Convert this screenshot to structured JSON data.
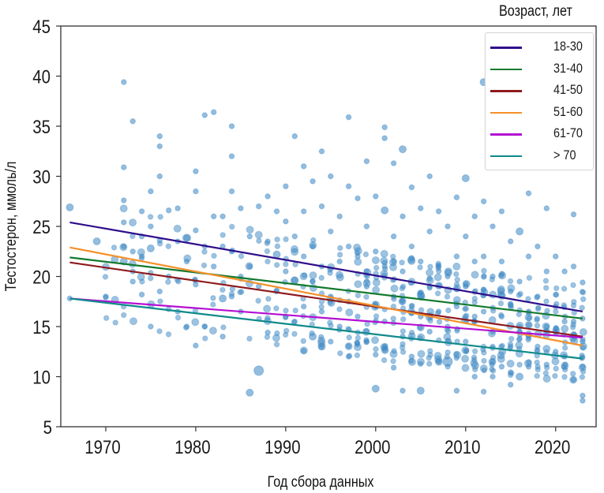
{
  "chart_data": {
    "type": "scatter",
    "title": "",
    "xlabel": "Год сбора данных",
    "ylabel": "Тестостерон, ммоль/л",
    "xlim": [
      1965,
      2024.5
    ],
    "ylim": [
      5,
      45
    ],
    "xticks": [
      1970,
      1980,
      1990,
      2000,
      2010,
      2020
    ],
    "yticks": [
      5,
      10,
      15,
      20,
      25,
      30,
      35,
      40,
      45
    ],
    "grid": false,
    "legend": {
      "title": "Возраст, лет",
      "placement": "top-right",
      "entries": [
        {
          "label": "18-30",
          "color": "#2e0d8a"
        },
        {
          "label": "31-40",
          "color": "#137a2e"
        },
        {
          "label": "41-50",
          "color": "#8e1a1e"
        },
        {
          "label": "51-60",
          "color": "#f5902a"
        },
        {
          "label": "61-70",
          "color": "#b40fd2"
        },
        {
          "label": "> 70",
          "color": "#0f8a8a"
        }
      ]
    },
    "scatter_color": "#3b87c4",
    "trend_lines": [
      {
        "name": "18-30",
        "x": [
          1966,
          2023
        ],
        "y": [
          25.4,
          16.5
        ]
      },
      {
        "name": "31-40",
        "x": [
          1966,
          2023
        ],
        "y": [
          21.9,
          15.8
        ]
      },
      {
        "name": "41-50",
        "x": [
          1966,
          2023
        ],
        "y": [
          21.4,
          14.0
        ]
      },
      {
        "name": "51-60",
        "x": [
          1966,
          2023
        ],
        "y": [
          22.9,
          13.1
        ]
      },
      {
        "name": "61-70",
        "x": [
          1966,
          2023
        ],
        "y": [
          17.8,
          13.9
        ]
      },
      {
        "name": "> 70",
        "x": [
          1966,
          2023
        ],
        "y": [
          17.8,
          11.8
        ]
      }
    ],
    "points": [
      [
        1966,
        26.9,
        3
      ],
      [
        1966,
        17.8,
        2
      ],
      [
        1969,
        23.5,
        3
      ],
      [
        1970,
        18.0,
        2
      ],
      [
        1972,
        39.4,
        2
      ],
      [
        1972,
        30.9,
        2
      ],
      [
        1972,
        27.6,
        2
      ],
      [
        1972,
        25.4,
        2
      ],
      [
        1972,
        23.0,
        2
      ],
      [
        1972,
        21.5,
        3
      ],
      [
        1973,
        35.5,
        2
      ],
      [
        1973,
        22.5,
        2
      ],
      [
        1973,
        20.5,
        2
      ],
      [
        1973,
        19.5,
        2
      ],
      [
        1974,
        26.5,
        2
      ],
      [
        1974,
        24.0,
        2
      ],
      [
        1974,
        22.0,
        2
      ],
      [
        1974,
        18.2,
        2
      ],
      [
        1975,
        28.5,
        2
      ],
      [
        1975,
        25.0,
        2
      ],
      [
        1975,
        22.8,
        3
      ],
      [
        1975,
        15.0,
        2
      ],
      [
        1976,
        34.0,
        2
      ],
      [
        1976,
        33.0,
        2
      ],
      [
        1976,
        30.0,
        2
      ],
      [
        1976,
        23.6,
        2
      ],
      [
        1976,
        18.5,
        2
      ],
      [
        1977,
        26.6,
        2
      ],
      [
        1977,
        20.0,
        2
      ],
      [
        1978,
        26.8,
        2
      ],
      [
        1978,
        23.5,
        2
      ],
      [
        1978,
        16.5,
        2
      ],
      [
        1979,
        21.5,
        2
      ],
      [
        1979,
        15.0,
        2
      ],
      [
        1980,
        30.5,
        2
      ],
      [
        1980,
        28.5,
        2
      ],
      [
        1980,
        24.6,
        2
      ],
      [
        1980,
        19.2,
        2
      ],
      [
        1980,
        13.1,
        2
      ],
      [
        1981,
        36.1,
        2
      ],
      [
        1981,
        23.0,
        2
      ],
      [
        1981,
        15.0,
        2
      ],
      [
        1982,
        36.4,
        2
      ],
      [
        1982,
        26.0,
        2
      ],
      [
        1982,
        21.0,
        2
      ],
      [
        1983,
        26.0,
        2
      ],
      [
        1983,
        23.0,
        2
      ],
      [
        1983,
        17.8,
        3
      ],
      [
        1983,
        14.0,
        2
      ],
      [
        1984,
        35.0,
        2
      ],
      [
        1984,
        32.0,
        2
      ],
      [
        1984,
        28.5,
        2
      ],
      [
        1984,
        22.5,
        2
      ],
      [
        1984,
        18.0,
        2
      ],
      [
        1985,
        26.8,
        2
      ],
      [
        1985,
        20.0,
        2
      ],
      [
        1985,
        16.5,
        2
      ],
      [
        1986,
        8.4,
        3
      ],
      [
        1986,
        24.0,
        2
      ],
      [
        1986,
        21.0,
        2
      ],
      [
        1987,
        10.6,
        4
      ],
      [
        1987,
        27.0,
        2
      ],
      [
        1987,
        19.0,
        2
      ],
      [
        1988,
        28.0,
        2
      ],
      [
        1988,
        23.5,
        2
      ],
      [
        1988,
        14.4,
        2
      ],
      [
        1989,
        26.5,
        2
      ],
      [
        1989,
        22.2,
        3
      ],
      [
        1989,
        18.6,
        2
      ],
      [
        1990,
        29.0,
        2
      ],
      [
        1990,
        25.5,
        2
      ],
      [
        1990,
        20.5,
        2
      ],
      [
        1990,
        16.0,
        2
      ],
      [
        1991,
        34.0,
        2
      ],
      [
        1991,
        24.0,
        2
      ],
      [
        1991,
        15.5,
        2
      ],
      [
        1992,
        31.0,
        2
      ],
      [
        1992,
        26.5,
        2
      ],
      [
        1992,
        22.0,
        2
      ],
      [
        1992,
        17.0,
        2
      ],
      [
        1993,
        29.5,
        2
      ],
      [
        1993,
        23.0,
        2
      ],
      [
        1993,
        19.5,
        2
      ],
      [
        1993,
        14.0,
        3
      ],
      [
        1994,
        32.5,
        2
      ],
      [
        1994,
        27.0,
        2
      ],
      [
        1994,
        21.0,
        2
      ],
      [
        1994,
        16.5,
        2
      ],
      [
        1994,
        13.0,
        3
      ],
      [
        1995,
        30.0,
        2
      ],
      [
        1995,
        24.5,
        2
      ],
      [
        1995,
        18.0,
        2
      ],
      [
        1995,
        13.5,
        2
      ],
      [
        1996,
        26.0,
        2
      ],
      [
        1996,
        21.5,
        2
      ],
      [
        1996,
        15.0,
        2
      ],
      [
        1997,
        35.9,
        2
      ],
      [
        1997,
        29.0,
        2
      ],
      [
        1997,
        23.0,
        2
      ],
      [
        1997,
        17.5,
        2
      ],
      [
        1997,
        12.0,
        2
      ],
      [
        1998,
        27.8,
        2
      ],
      [
        1998,
        22.0,
        2
      ],
      [
        1998,
        16.0,
        2
      ],
      [
        1999,
        31.5,
        2
      ],
      [
        1999,
        25.0,
        2
      ],
      [
        1999,
        19.0,
        2
      ],
      [
        1999,
        13.5,
        2
      ],
      [
        2000,
        8.8,
        3
      ],
      [
        2000,
        28.0,
        2
      ],
      [
        2000,
        22.5,
        2
      ],
      [
        2000,
        17.0,
        2
      ],
      [
        2000,
        12.2,
        2
      ],
      [
        2001,
        34.9,
        2
      ],
      [
        2001,
        33.8,
        2
      ],
      [
        2001,
        26.6,
        3
      ],
      [
        2001,
        21.0,
        2
      ],
      [
        2001,
        15.5,
        2
      ],
      [
        2002,
        31.3,
        2
      ],
      [
        2002,
        24.0,
        2
      ],
      [
        2002,
        18.0,
        2
      ],
      [
        2002,
        10.9,
        2
      ],
      [
        2003,
        32.7,
        3
      ],
      [
        2003,
        8.6,
        2
      ],
      [
        2003,
        26.0,
        2
      ],
      [
        2003,
        20.5,
        2
      ],
      [
        2003,
        14.0,
        2
      ],
      [
        2004,
        28.9,
        2
      ],
      [
        2004,
        23.0,
        2
      ],
      [
        2004,
        17.0,
        2
      ],
      [
        2004,
        12.0,
        2
      ],
      [
        2005,
        26.8,
        2
      ],
      [
        2005,
        21.5,
        2
      ],
      [
        2005,
        16.0,
        2
      ],
      [
        2005,
        8.6,
        3
      ],
      [
        2006,
        30.0,
        2
      ],
      [
        2006,
        24.5,
        2
      ],
      [
        2006,
        19.0,
        2
      ],
      [
        2006,
        14.5,
        2
      ],
      [
        2007,
        26.5,
        2
      ],
      [
        2007,
        21.0,
        2
      ],
      [
        2007,
        16.5,
        2
      ],
      [
        2007,
        11.5,
        2
      ],
      [
        2008,
        25.0,
        2
      ],
      [
        2008,
        20.0,
        2
      ],
      [
        2008,
        15.0,
        2
      ],
      [
        2008,
        11.5,
        4
      ],
      [
        2009,
        27.9,
        2
      ],
      [
        2009,
        22.0,
        2
      ],
      [
        2009,
        17.0,
        2
      ],
      [
        2009,
        8.6,
        2
      ],
      [
        2010,
        29.8,
        3
      ],
      [
        2010,
        24.0,
        2
      ],
      [
        2010,
        19.0,
        2
      ],
      [
        2010,
        13.5,
        2
      ],
      [
        2011,
        26.0,
        2
      ],
      [
        2011,
        21.5,
        2
      ],
      [
        2011,
        16.0,
        2
      ],
      [
        2011,
        10.0,
        2
      ],
      [
        2012,
        39.4,
        3
      ],
      [
        2012,
        27.5,
        2
      ],
      [
        2012,
        22.0,
        2
      ],
      [
        2012,
        16.5,
        2
      ],
      [
        2012,
        8.5,
        2
      ],
      [
        2013,
        25.0,
        2
      ],
      [
        2013,
        20.0,
        2
      ],
      [
        2013,
        14.5,
        2
      ],
      [
        2013,
        10.0,
        2
      ],
      [
        2014,
        26.5,
        2
      ],
      [
        2014,
        21.5,
        2
      ],
      [
        2014,
        16.0,
        2
      ],
      [
        2014,
        11.0,
        2
      ],
      [
        2015,
        23.5,
        2
      ],
      [
        2015,
        18.5,
        2
      ],
      [
        2015,
        13.0,
        2
      ],
      [
        2015,
        9.2,
        2
      ],
      [
        2016,
        24.5,
        3
      ],
      [
        2016,
        19.5,
        2
      ],
      [
        2016,
        14.5,
        2
      ],
      [
        2016,
        10.0,
        3
      ],
      [
        2017,
        28.3,
        2
      ],
      [
        2017,
        22.0,
        2
      ],
      [
        2017,
        16.5,
        2
      ],
      [
        2017,
        11.0,
        2
      ],
      [
        2018,
        23.0,
        2
      ],
      [
        2018,
        18.0,
        2
      ],
      [
        2018,
        13.0,
        2
      ],
      [
        2019,
        26.8,
        2
      ],
      [
        2019,
        20.5,
        2
      ],
      [
        2019,
        15.0,
        2
      ],
      [
        2019,
        11.2,
        2
      ],
      [
        2020,
        22.0,
        2
      ],
      [
        2020,
        17.0,
        2
      ],
      [
        2020,
        12.5,
        2
      ],
      [
        2021,
        20.5,
        2
      ],
      [
        2021,
        15.5,
        2
      ],
      [
        2021,
        12.0,
        2
      ],
      [
        2022,
        26.2,
        2
      ],
      [
        2022,
        21.0,
        2
      ],
      [
        2022,
        15.5,
        2
      ],
      [
        2023,
        19.4,
        2
      ],
      [
        2023,
        15.8,
        2
      ],
      [
        2023,
        13.5,
        2
      ],
      [
        2023,
        11.0,
        2
      ],
      [
        2023,
        8.1,
        2
      ],
      [
        2023,
        7.6,
        2
      ]
    ]
  }
}
